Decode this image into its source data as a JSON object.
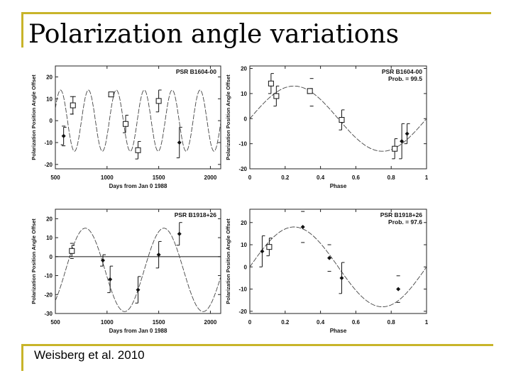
{
  "slide": {
    "title": "Polarization angle variations",
    "citation": "Weisberg et al. 2010",
    "accent_color": "#c8b42a"
  },
  "chart_data": [
    {
      "id": "tl",
      "type": "scatter",
      "subtitle": "PSR B1604-00",
      "xlabel": "Days from Jan 0 1988",
      "ylabel": "Polarization Position Angle Offset",
      "xlim": [
        500,
        2100
      ],
      "ylim": [
        -22,
        25
      ],
      "xticks": [
        500,
        1000,
        1500,
        2000
      ],
      "yticks": [
        -20,
        -10,
        0,
        10,
        20
      ],
      "model": {
        "amplitude": 14,
        "period": 270,
        "peak_at": 820,
        "offset": 0
      },
      "points": [
        {
          "x": 580,
          "y": -7,
          "err": 4,
          "marker": "diamond"
        },
        {
          "x": 670,
          "y": 7,
          "err": 4,
          "marker": "square"
        },
        {
          "x": 1040,
          "y": 12,
          "err": 1,
          "marker": "square"
        },
        {
          "x": 1180,
          "y": -1.5,
          "err": 4,
          "marker": "square"
        },
        {
          "x": 1300,
          "y": -13.5,
          "err": 4,
          "marker": "square"
        },
        {
          "x": 1500,
          "y": 9,
          "err": 5,
          "marker": "square"
        },
        {
          "x": 1700,
          "y": -10,
          "err": 7,
          "marker": "diamond"
        }
      ],
      "limit_marks": [
        {
          "x": 660,
          "y": 11
        },
        {
          "x": 660,
          "y": 3
        },
        {
          "x": 580,
          "y": -2.5
        },
        {
          "x": 580,
          "y": -11.5
        }
      ]
    },
    {
      "id": "tr",
      "type": "scatter",
      "subtitle": "PSR B1604-00",
      "annotation": "Prob. = 99.5",
      "xlabel": "Phase",
      "ylabel": "Polarization Position Angle Offset",
      "xlim": [
        0,
        1
      ],
      "ylim": [
        -20,
        21
      ],
      "xticks": [
        0,
        0.2,
        0.4,
        0.6,
        0.8,
        1.0
      ],
      "yticks": [
        -20,
        -10,
        0,
        10,
        20
      ],
      "model": {
        "amplitude": 13,
        "period": 1,
        "peak_at": 0.25,
        "offset": 0
      },
      "points": [
        {
          "x": 0.12,
          "y": 14,
          "err": 4,
          "marker": "square"
        },
        {
          "x": 0.15,
          "y": 9,
          "err": 4,
          "marker": "square"
        },
        {
          "x": 0.34,
          "y": 11,
          "err": 1,
          "marker": "square"
        },
        {
          "x": 0.52,
          "y": -0.5,
          "err": 4,
          "marker": "square"
        },
        {
          "x": 0.82,
          "y": -12,
          "err": 4,
          "marker": "square"
        },
        {
          "x": 0.86,
          "y": -9,
          "err": 7,
          "marker": "diamond"
        },
        {
          "x": 0.89,
          "y": -6,
          "err": 4,
          "marker": "diamond"
        }
      ],
      "limit_marks": [
        {
          "x": 0.35,
          "y": 16
        },
        {
          "x": 0.35,
          "y": 5
        }
      ]
    },
    {
      "id": "bl",
      "type": "scatter",
      "subtitle": "PSR B1918+26",
      "xlabel": "Days from Jan 0 1988",
      "ylabel": "Polarization Position Angle Offset",
      "xlim": [
        500,
        2100
      ],
      "ylim": [
        -30,
        25
      ],
      "xticks": [
        500,
        1000,
        1500,
        2000
      ],
      "yticks": [
        -30,
        -20,
        -10,
        0,
        10,
        20
      ],
      "zero_line": true,
      "model": {
        "amplitude": 22,
        "period": 760,
        "peak_at": 790,
        "offset": -7
      },
      "points": [
        {
          "x": 660,
          "y": 3,
          "err": 3,
          "marker": "square"
        },
        {
          "x": 960,
          "y": -2,
          "err": 3,
          "marker": "diamond"
        },
        {
          "x": 1030,
          "y": -12,
          "err": 7,
          "marker": "diamond"
        },
        {
          "x": 1300,
          "y": -17.5,
          "err": 7,
          "marker": "diamond"
        },
        {
          "x": 1500,
          "y": 1,
          "err": 7,
          "marker": "diamond"
        },
        {
          "x": 1700,
          "y": 12,
          "err": 6,
          "marker": "diamond"
        }
      ],
      "limit_marks": [
        {
          "x": 660,
          "y": 7
        },
        {
          "x": 660,
          "y": -1
        }
      ]
    },
    {
      "id": "br",
      "type": "scatter",
      "subtitle": "PSR B1918+26",
      "annotation": "Prob. = 97.6",
      "xlabel": "Phase",
      "ylabel": "Polarization Position Angle Offset",
      "xlim": [
        0,
        1
      ],
      "ylim": [
        -21,
        26
      ],
      "xticks": [
        0,
        0.2,
        0.4,
        0.6,
        0.8,
        1.0
      ],
      "yticks": [
        -20,
        -10,
        0,
        10,
        20
      ],
      "model": {
        "amplitude": 18,
        "period": 1,
        "peak_at": 0.25,
        "offset": 0
      },
      "points": [
        {
          "x": 0.07,
          "y": 7,
          "err": 7,
          "marker": "diamond"
        },
        {
          "x": 0.11,
          "y": 9,
          "err": 4,
          "marker": "square"
        },
        {
          "x": 0.3,
          "y": 18,
          "err": 0,
          "marker": "diamond"
        },
        {
          "x": 0.45,
          "y": 4,
          "err": 0,
          "marker": "diamond"
        },
        {
          "x": 0.52,
          "y": -5,
          "err": 7,
          "marker": "diamond"
        },
        {
          "x": 0.84,
          "y": -10,
          "err": 0,
          "marker": "diamond"
        }
      ],
      "limit_marks": [
        {
          "x": 0.3,
          "y": 25
        },
        {
          "x": 0.3,
          "y": 11
        },
        {
          "x": 0.45,
          "y": 10
        },
        {
          "x": 0.45,
          "y": -2
        },
        {
          "x": 0.84,
          "y": -4
        },
        {
          "x": 0.84,
          "y": -16
        }
      ]
    }
  ]
}
